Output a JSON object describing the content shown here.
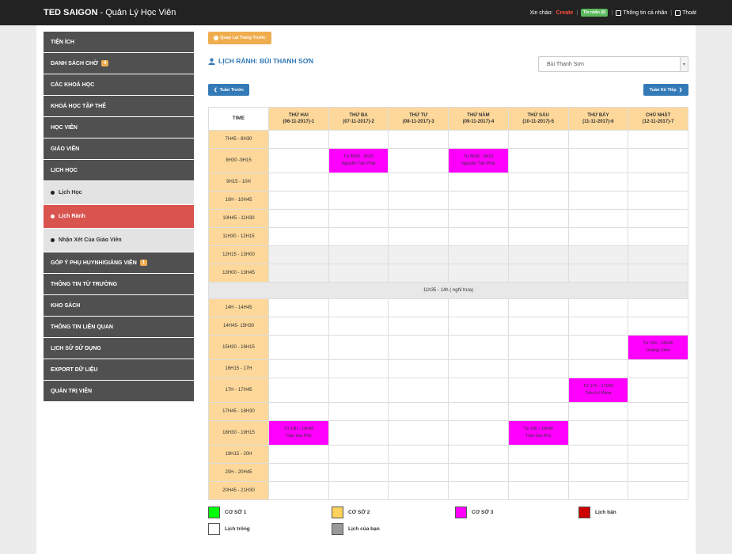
{
  "app": {
    "brand": "TED SAIGON",
    "subtitle": "- Quản Lý Học Viên"
  },
  "topbar": {
    "greeting": "Xin chào:",
    "username": "Create",
    "messages": "Tin nhắn (0)",
    "profile": "Thông tin cá nhân",
    "logout": "Thoát"
  },
  "sidebar": {
    "items": [
      {
        "label": "TIỆN ÍCH"
      },
      {
        "label": "DANH SÁCH CHỜ",
        "badge": "4"
      },
      {
        "label": "CÁC KHOÁ HỌC"
      },
      {
        "label": "KHOÁ HỌC TẬP THỂ"
      },
      {
        "label": "HỌC VIÊN"
      },
      {
        "label": "GIÁO VIÊN"
      },
      {
        "label": "LỊCH HỌC"
      }
    ],
    "subitems": [
      {
        "label": "Lịch Học"
      },
      {
        "label": "Lịch Rảnh"
      },
      {
        "label": "Nhận Xét Của Giáo Viên"
      }
    ],
    "items2": [
      {
        "label": "GÓP Ý PHỤ HUYNH/GIẢNG VIÊN",
        "badge": "1"
      },
      {
        "label": "THÔNG TIN TỪ TRƯỜNG"
      },
      {
        "label": "KHO SÁCH"
      },
      {
        "label": "THÔNG TIN LIÊN QUAN"
      },
      {
        "label": "LỊCH SỬ SỬ DỤNG"
      },
      {
        "label": "EXPORT DỮ LIỆU"
      },
      {
        "label": "QUẢN TRỊ VIÊN"
      }
    ]
  },
  "main": {
    "back_button": "Quay Lại Trang Trước",
    "title": "LỊCH RẢNH: BÙI THANH SƠN",
    "teacher_select": "Bùi Thanh Sơn",
    "prev_week": "Tuần Trước",
    "next_week": "Tuần Kế Tiếp"
  },
  "schedule": {
    "time_header": "TIME",
    "days": [
      {
        "name": "THỨ HAI",
        "date": "(06-11-2017)-1"
      },
      {
        "name": "THỨ BA",
        "date": "(07-11-2017)-2"
      },
      {
        "name": "THỨ TƯ",
        "date": "(08-11-2017)-3"
      },
      {
        "name": "THỨ NĂM",
        "date": "(09-11-2017)-4"
      },
      {
        "name": "THỨ SÁU",
        "date": "(10-11-2017)-5"
      },
      {
        "name": "THỨ BẢY",
        "date": "(11-11-2017)-6"
      },
      {
        "name": "CHỦ NHẬT",
        "date": "(12-11-2017)-7"
      }
    ],
    "slots": [
      "7H45 - 8H30",
      "8H30 -9H15",
      "9H15 - 10H",
      "10H - 10H45",
      "10H45 - 11H30",
      "11H30 - 12H15",
      "12H15 - 13H00",
      "13H00 - 13H45"
    ],
    "break_label": "11h35 - 14h ( nghỉ trưa)",
    "slots2": [
      "14H - 14H45",
      "14H45- 15H30",
      "15H30 - 16H15",
      "16H15 - 17H",
      "17H - 17H45",
      "17H45 - 18H30",
      "18H30 - 19H15",
      "19H15 - 20H",
      "20H - 20H45",
      "20H45 - 21H30"
    ],
    "events": {
      "e1": {
        "time": "Từ 8h30 - 9h15",
        "name": "Nguyễn Tấn Phát"
      },
      "e2": {
        "time": "Từ 8h30 - 9h15",
        "name": "Nguyễn Tấn Phát"
      },
      "e3": {
        "time": "Từ 16h - 16h45",
        "name": "Hoàng Liêm"
      },
      "e4": {
        "time": "Từ 17h - 17h45",
        "name": "Trần Lê Khoa"
      },
      "e5": {
        "time": "Từ 19h - 19h45",
        "name": "Trần Gia Phú"
      },
      "e6": {
        "time": "Từ 19h - 19h45",
        "name": "Trần Gia Phú"
      }
    },
    "event_color": "#ff00ff",
    "time_column_color": "#fdd89a"
  },
  "legend": [
    {
      "label": "CƠ SỞ 1",
      "color": "#00ff00"
    },
    {
      "label": "CƠ SỞ 2",
      "color": "#fdd35c"
    },
    {
      "label": "CƠ SỞ 3",
      "color": "#ff00ff"
    },
    {
      "label": "Lịch bận",
      "color": "#cc0000"
    },
    {
      "label": "Lịch trống",
      "color": "#ffffff"
    },
    {
      "label": "Lịch của bạn",
      "color": "#999999"
    }
  ]
}
